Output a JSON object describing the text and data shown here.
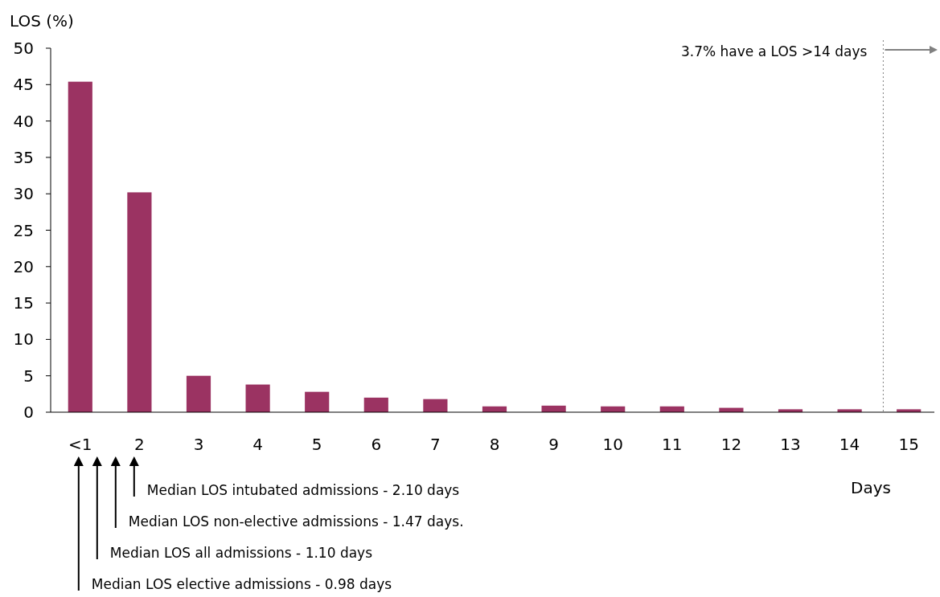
{
  "chart_data": {
    "type": "bar",
    "ylabel": "LOS (%)",
    "xlabel": "Days",
    "categories": [
      "<1",
      "2",
      "3",
      "4",
      "5",
      "6",
      "7",
      "8",
      "9",
      "10",
      "11",
      "12",
      "13",
      "14",
      "15"
    ],
    "values": [
      45.4,
      30.2,
      5.0,
      3.8,
      2.8,
      2.0,
      1.8,
      0.8,
      0.9,
      0.8,
      0.8,
      0.6,
      0.4,
      0.4,
      0.4
    ],
    "color": "#9b3362",
    "ylim": [
      0,
      50
    ],
    "yticks": [
      0,
      5,
      10,
      15,
      20,
      25,
      30,
      35,
      40,
      45,
      50
    ],
    "grid": false,
    "annotations": [
      "3.7% have a LOS >14 days",
      "Median LOS elective admissions - 0.98 days",
      "Median LOS all admissions - 1.10 days",
      "Median LOS non-elective admissions - 1.47 days.",
      "Median LOS intubated admissions - 2.10 days"
    ]
  }
}
